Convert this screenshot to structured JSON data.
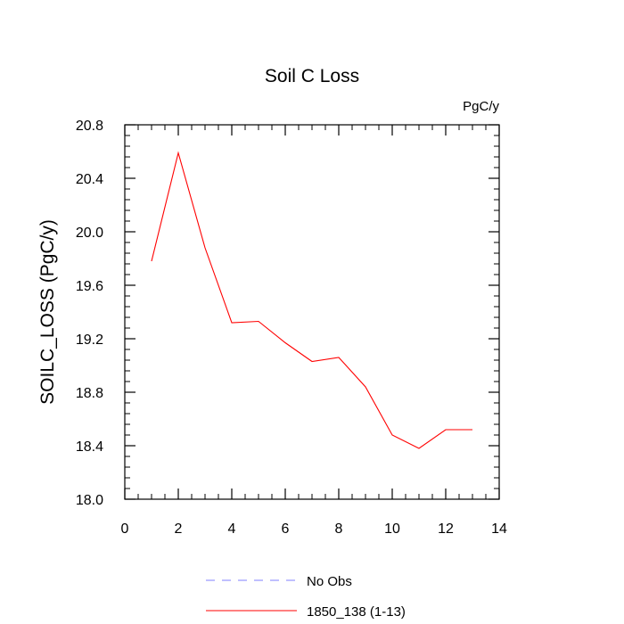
{
  "chart_data": {
    "type": "line",
    "title": "Soil C Loss",
    "units_label": "PgC/y",
    "xlabel": "",
    "ylabel": "SOILC_LOSS  (PgC/y)",
    "xlim": [
      0,
      14
    ],
    "ylim": [
      18.0,
      20.8
    ],
    "x_ticks": [
      "0",
      "2",
      "4",
      "6",
      "8",
      "10",
      "12",
      "14"
    ],
    "y_ticks": [
      "18.0",
      "18.4",
      "18.8",
      "19.2",
      "19.6",
      "20.0",
      "20.4",
      "20.8"
    ],
    "grid": false,
    "legend_position": "bottom",
    "series": [
      {
        "name": "No Obs",
        "color": "#8080ff",
        "style": "dashed",
        "x": [],
        "values": []
      },
      {
        "name": "1850_138 (1-13)",
        "color": "#ff0000",
        "style": "solid",
        "x": [
          1,
          2,
          3,
          4,
          5,
          6,
          7,
          8,
          9,
          10,
          11,
          12,
          13
        ],
        "values": [
          19.78,
          20.59,
          19.88,
          19.32,
          19.33,
          19.17,
          19.03,
          19.06,
          18.84,
          18.48,
          18.38,
          18.52,
          18.52
        ]
      }
    ]
  }
}
